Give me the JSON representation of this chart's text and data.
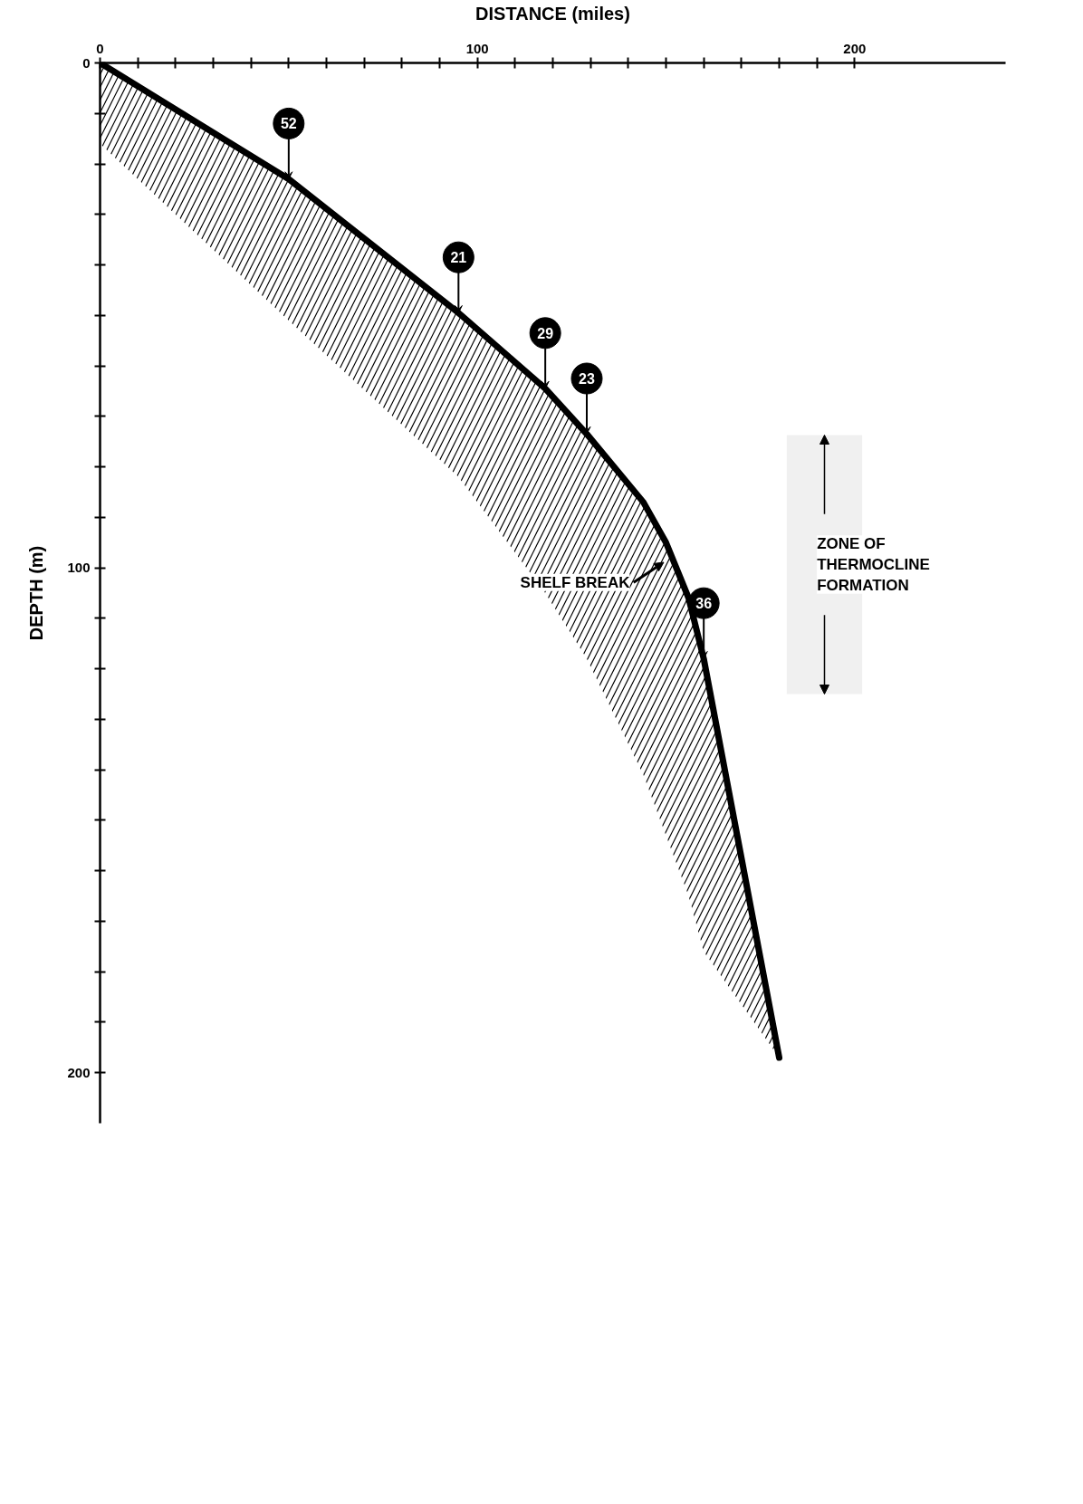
{
  "chart_data": {
    "type": "line",
    "xlabel": "DISTANCE (miles)",
    "ylabel": "DEPTH (m)",
    "x": [
      0,
      50,
      95,
      118,
      129,
      144,
      150,
      156,
      160,
      180
    ],
    "series": [
      {
        "color": "#000000",
        "values": [
          0,
          23,
          49.5,
          64.5,
          73.5,
          87,
          95,
          106,
          118,
          197
        ],
        "upper": [
          0,
          23,
          49.5,
          64.5,
          73.5,
          87,
          95,
          106,
          118,
          197
        ],
        "lower": [
          16,
          51,
          82,
          105,
          118,
          141,
          153,
          165,
          176,
          197
        ]
      }
    ],
    "xlim": [
      0,
      240
    ],
    "ylim": [
      210,
      0
    ],
    "xticks": [
      0,
      {
        "value": 10,
        "label": null
      },
      {
        "value": 20,
        "label": null
      },
      {
        "value": 30,
        "label": null
      },
      {
        "value": 40,
        "label": null
      },
      {
        "value": 50,
        "label": null
      },
      {
        "value": 60,
        "label": null
      },
      {
        "value": 70,
        "label": null
      },
      {
        "value": 80,
        "label": null
      },
      {
        "value": 90,
        "label": null
      },
      100,
      {
        "value": 110,
        "label": null
      },
      {
        "value": 120,
        "label": null
      },
      {
        "value": 130,
        "label": null
      },
      {
        "value": 140,
        "label": null
      },
      {
        "value": 150,
        "label": null
      },
      {
        "value": 160,
        "label": null
      },
      {
        "value": 170,
        "label": null
      },
      {
        "value": 180,
        "label": null
      },
      {
        "value": 190,
        "label": null
      },
      200
    ],
    "yticks": [
      0,
      {
        "value": 10,
        "label": null
      },
      {
        "value": 20,
        "label": null
      },
      {
        "value": 30,
        "label": null
      },
      {
        "value": 40,
        "label": null
      },
      {
        "value": 50,
        "label": null
      },
      {
        "value": 60,
        "label": null
      },
      {
        "value": 70,
        "label": null
      },
      {
        "value": 80,
        "label": null
      },
      {
        "value": 90,
        "label": null
      },
      100,
      {
        "value": 110,
        "label": null
      },
      {
        "value": 120,
        "label": null
      },
      {
        "value": 130,
        "label": null
      },
      {
        "value": 140,
        "label": null
      },
      {
        "value": 150,
        "label": null
      },
      {
        "value": 160,
        "label": null
      },
      {
        "value": 170,
        "label": null
      },
      {
        "value": 180,
        "label": null
      },
      {
        "value": 190,
        "label": null
      },
      200
    ],
    "bands": [
      {
        "axis": "y",
        "from": 73.7,
        "to": 125,
        "label": "ZONE OF\nTHERMOCLINE\nFORMATION"
      }
    ],
    "annotations": [
      {
        "text": "52",
        "x": 50,
        "y": 23
      },
      {
        "text": "21",
        "x": 95,
        "y": 49.5
      },
      {
        "text": "29",
        "x": 118,
        "y": 64.5
      },
      {
        "text": "23",
        "x": 129,
        "y": 73.5
      },
      {
        "text": "36",
        "x": 160,
        "y": 118
      },
      "SHELF BREAK"
    ]
  }
}
